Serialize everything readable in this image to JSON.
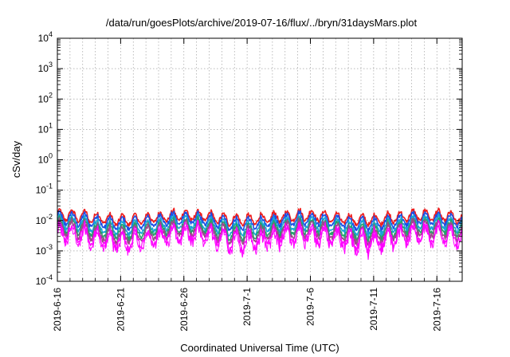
{
  "chart_data": {
    "type": "line",
    "title": "/data/run/goesPlots/archive/2019-07-16/flux/../bryn/31daysMars.plot",
    "xlabel": "Coordinated Universal Time (UTC)",
    "ylabel": "cSv/day",
    "yscale": "log",
    "ylim": [
      0.0001,
      10000
    ],
    "xlim": [
      "2019-06-16",
      "2019-07-18"
    ],
    "y_ticks": [
      {
        "base": "10",
        "exp": "4"
      },
      {
        "base": "10",
        "exp": "3"
      },
      {
        "base": "10",
        "exp": "2"
      },
      {
        "base": "10",
        "exp": "1"
      },
      {
        "base": "10",
        "exp": "0"
      },
      {
        "base": "10",
        "exp": "-1"
      },
      {
        "base": "10",
        "exp": "-2"
      },
      {
        "base": "10",
        "exp": "-3"
      },
      {
        "base": "10",
        "exp": "-4"
      }
    ],
    "x_ticks": [
      "2019-6-16",
      "2019-6-21",
      "2019-6-26",
      "2019-7-1",
      "2019-7-6",
      "2019-7-11",
      "2019-7-16"
    ],
    "grid": true,
    "series_colors": [
      "#ee1c1c",
      "#1c4fe6",
      "#18a3d8",
      "#22a36a",
      "#9b4a8a",
      "#ff00ff"
    ],
    "series_levels": [
      0.0125,
      0.0095,
      0.0068,
      0.0052,
      0.0041,
      0.003
    ]
  }
}
